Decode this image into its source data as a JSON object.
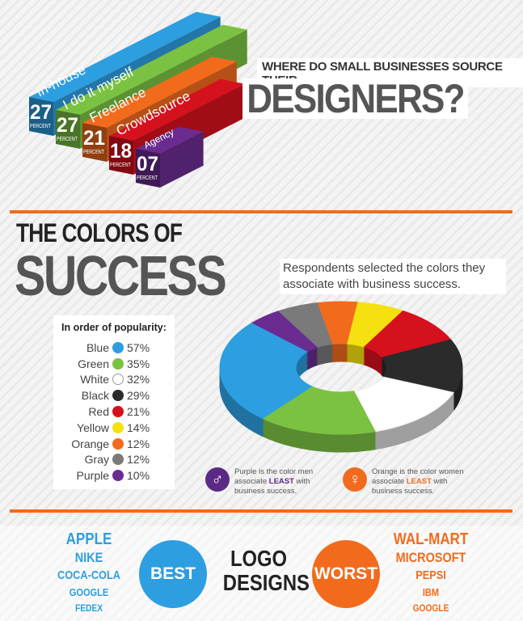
{
  "designers": {
    "title_line1": "WHERE DO SMALL BUSINESSES SOURCE THEIR",
    "title_line2": "DESIGNERS?"
  },
  "colors_section": {
    "title_line1": "THE COLORS OF",
    "title_line2": "SUCCESS",
    "subtitle": "Respondents selected the colors they associate with business success.",
    "legend_title": "In order of popularity:"
  },
  "notes": {
    "men": {
      "pre": "Purple is the color men associate ",
      "emph": "LEAST",
      "post": " with business success.",
      "icon": "male-symbol-icon",
      "color": "#5b2a86"
    },
    "women": {
      "pre": "Orange is the color women associate ",
      "emph": "LEAST",
      "post": " with business success.",
      "icon": "female-symbol-icon",
      "color": "#f26b1d"
    }
  },
  "logos": {
    "best_label": "BEST",
    "center_line1": "LOGO",
    "center_line2": "DESIGNS",
    "worst_label": "WORST",
    "best": [
      "APPLE",
      "NIKE",
      "COCA-COLA",
      "GOOGLE",
      "FEDEX"
    ],
    "worst": [
      "WAL-MART",
      "MICROSOFT",
      "PEPSI",
      "IBM",
      "GOOGLE"
    ],
    "best_color": "#2d9ee0",
    "worst_color": "#f26b1d"
  },
  "chart_data": [
    {
      "type": "bar",
      "title": "WHERE DO SMALL BUSINESSES SOURCE THEIR DESIGNERS?",
      "unit_label": "PERCENT",
      "categories": [
        "In-house",
        "I do it myself",
        "Freelance",
        "Crowdsource",
        "Agency"
      ],
      "values": [
        27,
        27,
        21,
        18,
        7
      ],
      "value_labels": [
        "27",
        "27",
        "21",
        "18",
        "07"
      ],
      "colors": [
        "#2d9ee0",
        "#7cc242",
        "#f26b1d",
        "#d6111e",
        "#6a2c91"
      ]
    },
    {
      "type": "pie",
      "style": "3d-donut",
      "title": "THE COLORS OF SUCCESS",
      "categories": [
        "Blue",
        "Green",
        "White",
        "Black",
        "Red",
        "Yellow",
        "Orange",
        "Gray",
        "Purple"
      ],
      "values": [
        57,
        35,
        32,
        29,
        21,
        14,
        12,
        12,
        10
      ],
      "labels": [
        "57%",
        "35%",
        "32%",
        "29%",
        "21%",
        "14%",
        "12%",
        "12%",
        "10%"
      ],
      "colors": [
        "#2d9ee0",
        "#7cc242",
        "#ffffff",
        "#2b2b2b",
        "#d6111e",
        "#f5e10f",
        "#f26b1d",
        "#7a7a7a",
        "#6a2c91"
      ]
    }
  ]
}
